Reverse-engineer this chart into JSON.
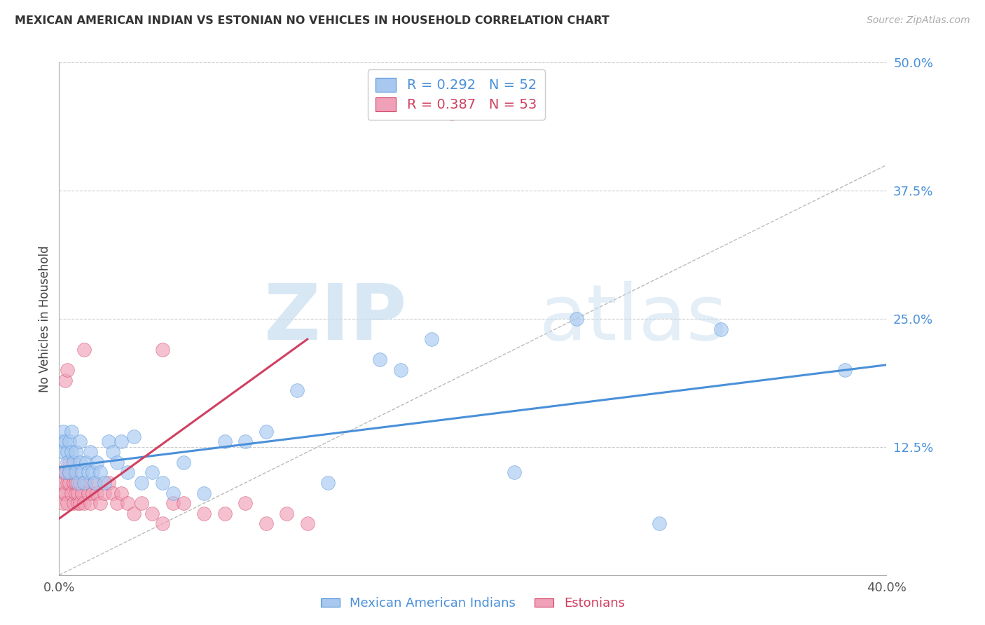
{
  "title": "MEXICAN AMERICAN INDIAN VS ESTONIAN NO VEHICLES IN HOUSEHOLD CORRELATION CHART",
  "source": "Source: ZipAtlas.com",
  "ylabel": "No Vehicles in Household",
  "xlim": [
    0.0,
    0.4
  ],
  "ylim": [
    0.0,
    0.5
  ],
  "xticks": [
    0.0,
    0.1,
    0.2,
    0.3,
    0.4
  ],
  "yticks": [
    0.0,
    0.125,
    0.25,
    0.375,
    0.5
  ],
  "blue_color": "#A8C8F0",
  "pink_color": "#F0A0B8",
  "blue_line_color": "#4A90D9",
  "pink_line_color": "#D04060",
  "R_blue": 0.292,
  "N_blue": 52,
  "R_pink": 0.387,
  "N_pink": 53,
  "watermark_zip": "ZIP",
  "watermark_atlas": "atlas",
  "legend_label_blue": "Mexican American Indians",
  "legend_label_pink": "Estonians",
  "blue_trend_x0": 0.0,
  "blue_trend_y0": 0.105,
  "blue_trend_x1": 0.4,
  "blue_trend_y1": 0.205,
  "pink_trend_x0": 0.0,
  "pink_trend_y0": 0.055,
  "pink_trend_x1": 0.12,
  "pink_trend_y1": 0.23,
  "blue_points_x": [
    0.001,
    0.002,
    0.002,
    0.003,
    0.003,
    0.004,
    0.004,
    0.005,
    0.005,
    0.006,
    0.006,
    0.007,
    0.008,
    0.008,
    0.009,
    0.01,
    0.01,
    0.011,
    0.012,
    0.013,
    0.014,
    0.015,
    0.016,
    0.017,
    0.018,
    0.02,
    0.022,
    0.024,
    0.026,
    0.028,
    0.03,
    0.033,
    0.036,
    0.04,
    0.045,
    0.05,
    0.055,
    0.06,
    0.07,
    0.08,
    0.09,
    0.1,
    0.115,
    0.13,
    0.155,
    0.18,
    0.22,
    0.25,
    0.32,
    0.38,
    0.165,
    0.29
  ],
  "blue_points_y": [
    0.13,
    0.14,
    0.12,
    0.13,
    0.1,
    0.12,
    0.11,
    0.1,
    0.13,
    0.12,
    0.14,
    0.11,
    0.1,
    0.12,
    0.09,
    0.11,
    0.13,
    0.1,
    0.09,
    0.11,
    0.1,
    0.12,
    0.1,
    0.09,
    0.11,
    0.1,
    0.09,
    0.13,
    0.12,
    0.11,
    0.13,
    0.1,
    0.135,
    0.09,
    0.1,
    0.09,
    0.08,
    0.11,
    0.08,
    0.13,
    0.13,
    0.14,
    0.18,
    0.09,
    0.21,
    0.23,
    0.1,
    0.25,
    0.24,
    0.2,
    0.2,
    0.05
  ],
  "pink_points_x": [
    0.001,
    0.001,
    0.002,
    0.002,
    0.003,
    0.003,
    0.004,
    0.004,
    0.005,
    0.005,
    0.005,
    0.006,
    0.006,
    0.007,
    0.007,
    0.008,
    0.008,
    0.009,
    0.009,
    0.01,
    0.01,
    0.011,
    0.012,
    0.013,
    0.014,
    0.015,
    0.016,
    0.017,
    0.018,
    0.02,
    0.022,
    0.024,
    0.026,
    0.028,
    0.03,
    0.033,
    0.036,
    0.04,
    0.045,
    0.05,
    0.055,
    0.06,
    0.07,
    0.08,
    0.09,
    0.1,
    0.11,
    0.12,
    0.05,
    0.003,
    0.004,
    0.012,
    0.19
  ],
  "pink_points_y": [
    0.1,
    0.08,
    0.09,
    0.07,
    0.1,
    0.08,
    0.09,
    0.07,
    0.1,
    0.09,
    0.11,
    0.08,
    0.1,
    0.09,
    0.07,
    0.08,
    0.09,
    0.07,
    0.08,
    0.09,
    0.07,
    0.08,
    0.07,
    0.09,
    0.08,
    0.07,
    0.08,
    0.09,
    0.08,
    0.07,
    0.08,
    0.09,
    0.08,
    0.07,
    0.08,
    0.07,
    0.06,
    0.07,
    0.06,
    0.05,
    0.07,
    0.07,
    0.06,
    0.06,
    0.07,
    0.05,
    0.06,
    0.05,
    0.22,
    0.19,
    0.2,
    0.22,
    0.45
  ]
}
